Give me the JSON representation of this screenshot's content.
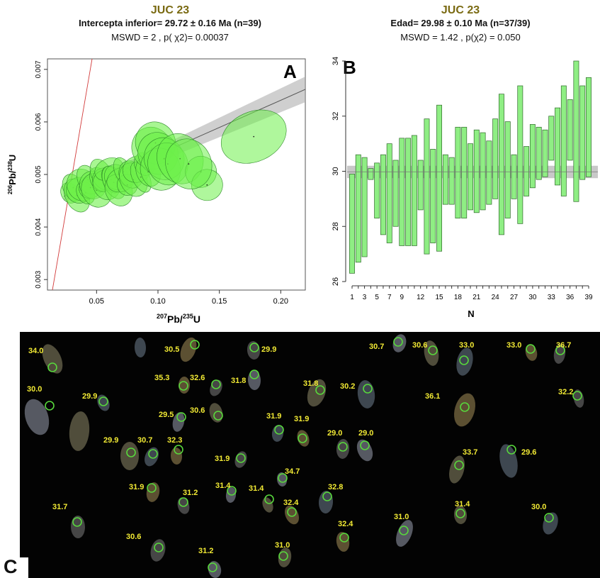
{
  "panel_letters": {
    "a": "A",
    "b": "B",
    "c": "C"
  },
  "chart_data": [
    {
      "type": "scatter",
      "panel": "A",
      "title": "JUC 23",
      "subtitle": "Intercepta inferior= 29.72 ± 0.16 Ma (n=39)",
      "annotation": "MSWD = 2 , p( χ2)= 0.00037",
      "xlabel": "207Pb/235U",
      "ylabel": "206Pb/238U",
      "xlim": [
        0.01,
        0.22
      ],
      "ylim": [
        0.0028,
        0.0072
      ],
      "x_ticks": [
        "0.05",
        "0.10",
        "0.15",
        "0.20"
      ],
      "y_ticks": [
        "0.003",
        "0.004",
        "0.005",
        "0.006",
        "0.007"
      ],
      "grid": false,
      "series": [
        {
          "x": [
            0.028,
            0.031,
            0.034,
            0.036,
            0.038,
            0.041,
            0.043,
            0.045,
            0.047,
            0.05,
            0.052,
            0.054,
            0.056,
            0.058,
            0.06,
            0.062,
            0.064,
            0.066,
            0.068,
            0.07,
            0.072,
            0.075,
            0.078,
            0.08,
            0.083,
            0.086,
            0.089,
            0.092,
            0.095,
            0.098,
            0.1,
            0.102,
            0.105,
            0.108,
            0.118,
            0.135,
            0.14,
            0.125,
            0.178
          ],
          "y": [
            0.00465,
            0.00475,
            0.0046,
            0.0047,
            0.0048,
            0.00465,
            0.0049,
            0.00475,
            0.0048,
            0.0047,
            0.0049,
            0.005,
            0.0049,
            0.0048,
            0.0051,
            0.0049,
            0.00485,
            0.00495,
            0.0047,
            0.0049,
            0.00505,
            0.0048,
            0.005,
            0.0049,
            0.0051,
            0.00495,
            0.0052,
            0.00505,
            0.0055,
            0.0056,
            0.0054,
            0.0051,
            0.0053,
            0.0052,
            0.0053,
            0.00505,
            0.0048,
            0.0052,
            0.00572
          ]
        }
      ]
    },
    {
      "type": "bar",
      "panel": "B",
      "title": "JUC 23",
      "subtitle": "Edad= 29.98 ± 0.10 Ma (n=37/39)",
      "annotation": "MSWD = 1.42 , p(χ2) = 0.050",
      "xlabel": "N",
      "ylabel": "",
      "ylim": [
        26,
        34
      ],
      "y_ticks": [
        "26",
        "28",
        "30",
        "32",
        "34"
      ],
      "x_ticks": [
        "1",
        "3",
        "5",
        "7",
        "9",
        "12",
        "15",
        "18",
        "21",
        "24",
        "27",
        "30",
        "33",
        "36",
        "39"
      ],
      "weighted_mean": 29.98,
      "weighted_mean_band": [
        29.75,
        30.2
      ],
      "series": [
        {
          "low": [
            26.3,
            26.7,
            26.9,
            29.7,
            28.3,
            27.7,
            27.4,
            28.0,
            27.3,
            27.3,
            27.3,
            28.6,
            27.0,
            27.4,
            27.1,
            28.8,
            28.8,
            28.3,
            28.3,
            28.6,
            28.5,
            28.6,
            28.8,
            29.0,
            27.7,
            28.3,
            29.0,
            28.1,
            29.1,
            29.4,
            29.7,
            29.8,
            30.4,
            29.5,
            29.1,
            30.4,
            28.9,
            29.7,
            29.8
          ],
          "high": [
            29.9,
            30.6,
            30.5,
            30.1,
            30.3,
            30.6,
            31.0,
            30.4,
            31.2,
            31.2,
            31.3,
            30.4,
            31.9,
            30.8,
            32.4,
            30.6,
            30.5,
            31.6,
            31.6,
            31.0,
            31.5,
            31.4,
            31.1,
            31.9,
            32.8,
            31.8,
            30.6,
            33.1,
            30.9,
            31.7,
            31.6,
            31.5,
            32.0,
            32.3,
            33.1,
            32.6,
            34.0,
            33.1,
            33.4
          ]
        }
      ]
    }
  ],
  "grain_labels": [
    "34.0",
    "30.5",
    "29.9",
    "30.7",
    "30.6",
    "33.0",
    "33.0",
    "36.7",
    "30.0",
    "29.9",
    "35.3",
    "32.6",
    "31.8",
    "31.8",
    "30.2",
    "36.1",
    "32.2",
    "29.5",
    "30.6",
    "31.9",
    "31.9",
    "29.0",
    "29.0",
    "29.9",
    "30.7",
    "32.3",
    "31.9",
    "34.7",
    "33.7",
    "29.6",
    "31.9",
    "31.2",
    "31.4",
    "31.4",
    "32.8",
    "31.7",
    "32.4",
    "31.0",
    "31.4",
    "30.0",
    "30.6",
    "32.4",
    "31.2",
    "31.0"
  ]
}
